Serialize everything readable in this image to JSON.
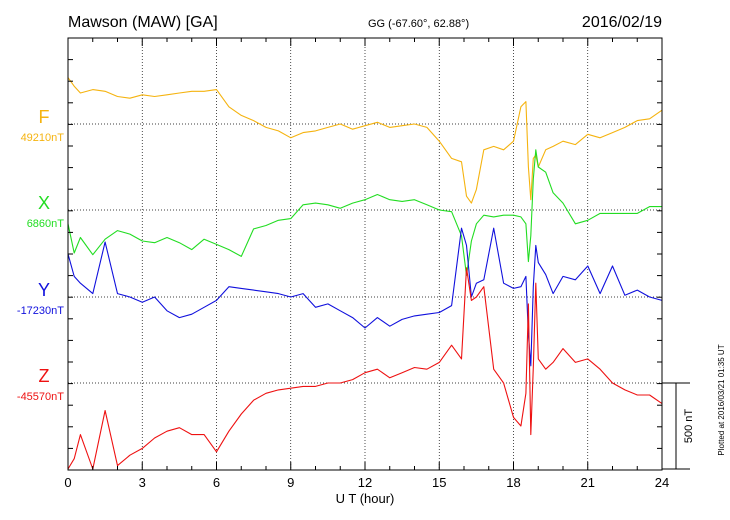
{
  "header": {
    "station": "Mawson (MAW)  [GA]",
    "coords": "GG (-67.60°,  62.88°)",
    "date": "2016/02/19"
  },
  "side_note": "Plotted at 2016/03/21 01:35 UT",
  "scale_label": "500 nT",
  "chart_data": {
    "type": "line",
    "xlabel": "U T (hour)",
    "xlim": [
      0,
      24
    ],
    "xticks": [
      "0",
      "3",
      "6",
      "9",
      "12",
      "15",
      "18",
      "21",
      "24"
    ],
    "scale_bar_nT": 500,
    "series": [
      {
        "name": "F",
        "baseline_label": "49210nT",
        "baseline_nT": 49210,
        "color": "#f5b30f",
        "x": [
          0,
          0.25,
          0.5,
          1,
          1.5,
          2,
          2.5,
          3,
          3.5,
          4,
          4.5,
          5,
          5.5,
          6,
          6.5,
          7,
          7.5,
          8,
          8.5,
          9,
          9.5,
          10,
          10.5,
          11,
          11.5,
          12,
          12.5,
          13,
          13.5,
          14,
          14.5,
          15,
          15.5,
          15.9,
          16.1,
          16.3,
          16.5,
          16.8,
          17.2,
          17.6,
          18,
          18.3,
          18.5,
          18.6,
          18.7,
          18.8,
          18.9,
          19,
          19.3,
          19.6,
          20,
          20.5,
          21,
          21.5,
          22,
          22.5,
          23,
          23.5,
          24
        ],
        "dev": [
          270,
          220,
          180,
          200,
          190,
          160,
          150,
          170,
          160,
          170,
          180,
          190,
          190,
          200,
          100,
          50,
          20,
          -20,
          -40,
          -80,
          -50,
          -40,
          -20,
          0,
          -30,
          -10,
          10,
          -20,
          -10,
          0,
          -20,
          -100,
          -200,
          -220,
          -420,
          -460,
          -380,
          -150,
          -130,
          -150,
          -100,
          100,
          130,
          -250,
          -440,
          -200,
          -180,
          -250,
          -150,
          -130,
          -100,
          -120,
          -60,
          -80,
          -50,
          -20,
          20,
          30,
          80
        ]
      },
      {
        "name": "X",
        "baseline_label": "6860nT",
        "baseline_nT": 6860,
        "color": "#22dd22",
        "x": [
          0,
          0.25,
          0.5,
          1,
          1.5,
          2,
          2.5,
          3,
          3.5,
          4,
          4.5,
          5,
          5.5,
          6,
          6.5,
          7,
          7.5,
          8,
          8.5,
          9,
          9.5,
          10,
          10.5,
          11,
          11.5,
          12,
          12.5,
          13,
          13.5,
          14,
          14.5,
          15,
          15.5,
          15.9,
          16.1,
          16.3,
          16.5,
          16.8,
          17.2,
          17.6,
          18,
          18.3,
          18.5,
          18.6,
          18.7,
          18.8,
          18.9,
          19,
          19.3,
          19.6,
          20,
          20.5,
          21,
          21.5,
          22,
          22.5,
          23,
          23.5,
          24
        ],
        "dev": [
          -80,
          -250,
          -160,
          -260,
          -170,
          -120,
          -140,
          -180,
          -190,
          -160,
          -190,
          -230,
          -170,
          -200,
          -230,
          -270,
          -110,
          -90,
          -60,
          -50,
          30,
          40,
          30,
          10,
          40,
          60,
          90,
          60,
          50,
          60,
          30,
          0,
          -10,
          -150,
          -380,
          -180,
          -80,
          -30,
          -40,
          -30,
          -30,
          -40,
          -80,
          -300,
          -150,
          180,
          350,
          250,
          220,
          100,
          40,
          -80,
          -60,
          -20,
          -20,
          -20,
          -20,
          20,
          20
        ]
      },
      {
        "name": "Y",
        "baseline_label": "-17230nT",
        "baseline_nT": -17230,
        "color": "#1010dd",
        "x": [
          0,
          0.25,
          0.5,
          1,
          1.5,
          2,
          2.5,
          3,
          3.5,
          4,
          4.5,
          5,
          5.5,
          6,
          6.5,
          7,
          7.5,
          8,
          8.5,
          9,
          9.5,
          10,
          10.5,
          11,
          11.5,
          12,
          12.5,
          13,
          13.5,
          14,
          14.5,
          15,
          15.5,
          15.9,
          16.1,
          16.3,
          16.5,
          16.8,
          17.2,
          17.6,
          18,
          18.3,
          18.5,
          18.6,
          18.7,
          18.8,
          18.9,
          19,
          19.3,
          19.6,
          20,
          20.5,
          21,
          21.5,
          22,
          22.5,
          23,
          23.5,
          24
        ],
        "dev": [
          250,
          120,
          80,
          20,
          320,
          20,
          0,
          -30,
          0,
          -80,
          -120,
          -100,
          -60,
          -20,
          60,
          50,
          40,
          30,
          20,
          0,
          20,
          -60,
          -40,
          -80,
          -120,
          -180,
          -120,
          -170,
          -130,
          -110,
          -100,
          -90,
          -50,
          400,
          300,
          0,
          80,
          100,
          400,
          80,
          50,
          60,
          120,
          -220,
          -400,
          60,
          300,
          200,
          130,
          20,
          120,
          100,
          180,
          20,
          180,
          10,
          40,
          0,
          -20
        ]
      },
      {
        "name": "Z",
        "baseline_label": "-45570nT",
        "baseline_nT": -45570,
        "color": "#ee1111",
        "x": [
          0,
          0.25,
          0.5,
          1,
          1.5,
          2,
          2.5,
          3,
          3.5,
          4,
          4.5,
          5,
          5.5,
          6,
          6.5,
          7,
          7.5,
          8,
          8.5,
          9,
          9.5,
          10,
          10.5,
          11,
          11.5,
          12,
          12.5,
          13,
          13.5,
          14,
          14.5,
          15,
          15.5,
          15.9,
          16.1,
          16.3,
          16.5,
          16.8,
          17.2,
          17.6,
          18,
          18.3,
          18.5,
          18.6,
          18.7,
          18.8,
          18.9,
          19,
          19.3,
          19.6,
          20,
          20.5,
          21,
          21.5,
          22,
          22.5,
          23,
          23.5,
          24
        ],
        "dev": [
          -600,
          -440,
          -300,
          -580,
          -160,
          -480,
          -420,
          -380,
          -320,
          -280,
          -260,
          -300,
          -300,
          -400,
          -280,
          -180,
          -100,
          -60,
          -40,
          -30,
          -20,
          -20,
          0,
          0,
          20,
          60,
          80,
          30,
          60,
          90,
          80,
          120,
          220,
          140,
          670,
          480,
          500,
          560,
          80,
          0,
          -200,
          -250,
          -60,
          460,
          -300,
          90,
          580,
          140,
          80,
          120,
          200,
          120,
          140,
          80,
          0,
          -40,
          -70,
          -70,
          -120
        ]
      }
    ]
  }
}
